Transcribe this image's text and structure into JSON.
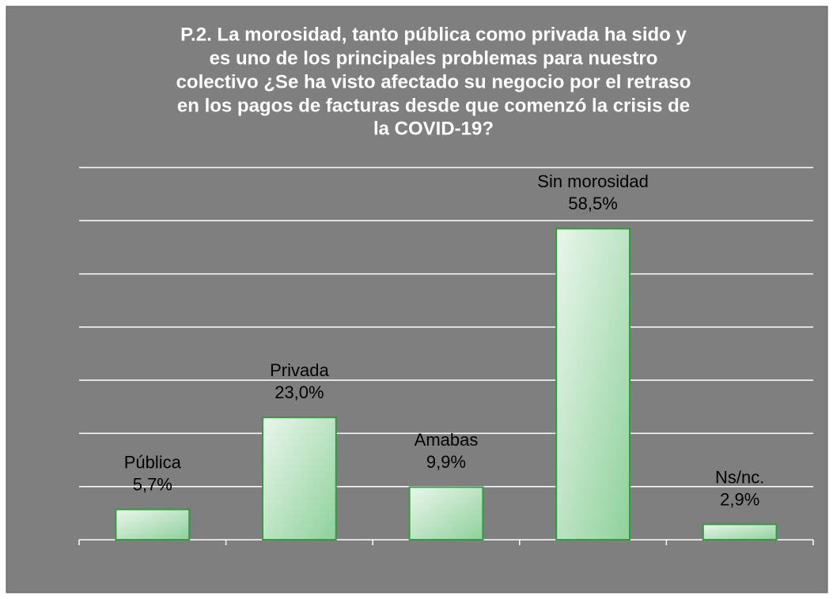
{
  "chart_data": {
    "type": "bar",
    "title": [
      "P.2. La morosidad, tanto pública como privada ha sido y",
      "es uno de los principales problemas para nuestro",
      "colectivo ¿Se ha visto afectado su negocio por el retraso",
      "en los pagos de facturas desde que comenzó la crisis de",
      "la COVID-19?"
    ],
    "categories": [
      "Pública",
      "Privada",
      "Amabas",
      "Sin morosidad",
      "Ns/nc."
    ],
    "values": [
      5.7,
      23.0,
      9.9,
      58.5,
      2.9
    ],
    "value_labels": [
      "5,7%",
      "23,0%",
      "9,9%",
      "58,5%",
      "2,9%"
    ],
    "color": "#2e9e3e",
    "ylim": [
      0,
      70
    ],
    "yticks": [
      0,
      10,
      20,
      30,
      40,
      50,
      60,
      70
    ],
    "grid": true
  }
}
